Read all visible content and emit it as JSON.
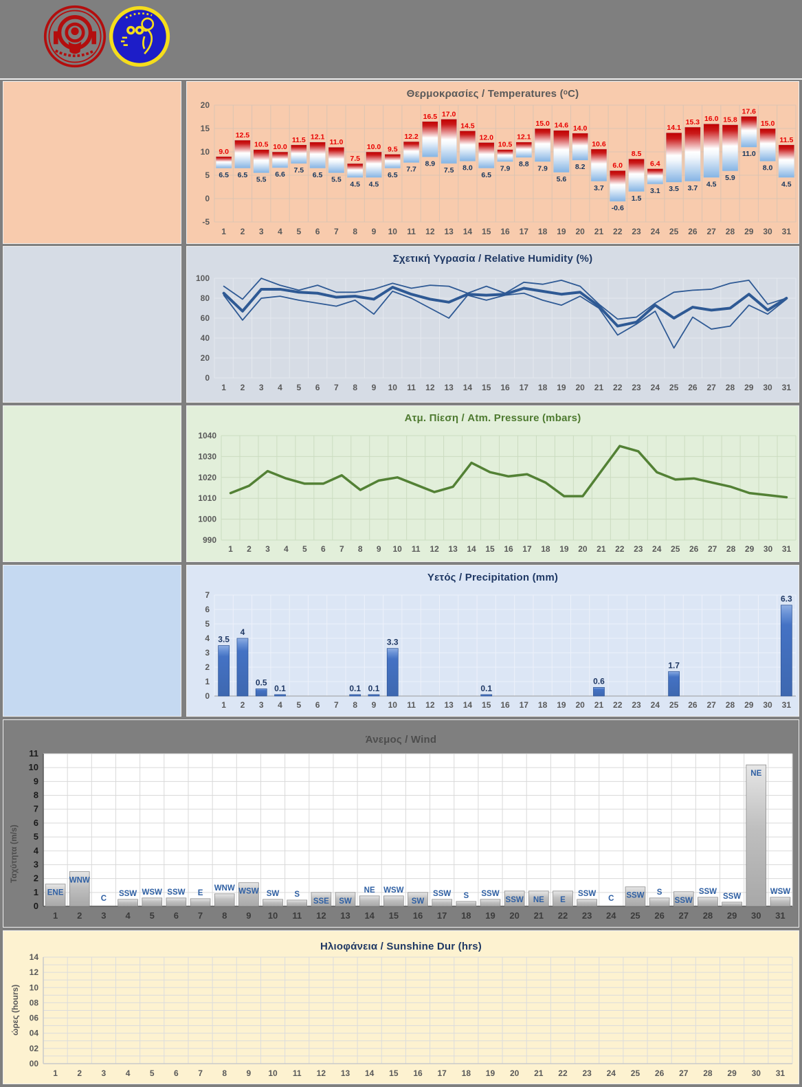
{
  "page": {
    "background": "#7F7F7F"
  },
  "header": {
    "logo_left": "red-university-seal",
    "logo_right": "blue-meteorology-observer-emblem",
    "logo_left_colors": {
      "main": "#B30E0E"
    },
    "logo_right_colors": {
      "disc": "#1D1DC8",
      "ring": "#F5DD1C"
    }
  },
  "chart_data": [
    {
      "id": "temperature",
      "type": "bar",
      "subtype": "floating-range-bar",
      "title": "Θερμοκρασίες / Temperatures (ᵒC)",
      "categories": [
        1,
        2,
        3,
        4,
        5,
        6,
        7,
        8,
        9,
        10,
        11,
        12,
        13,
        14,
        15,
        16,
        17,
        18,
        19,
        20,
        21,
        22,
        23,
        24,
        25,
        26,
        27,
        28,
        29,
        30,
        31
      ],
      "series": [
        {
          "name": "max",
          "values": [
            9.0,
            12.5,
            10.5,
            10.0,
            11.5,
            12.1,
            11.0,
            7.5,
            10.0,
            9.5,
            12.2,
            16.5,
            17.0,
            14.5,
            12.0,
            10.5,
            12.1,
            15.0,
            14.6,
            14.0,
            10.6,
            6.0,
            8.5,
            6.4,
            14.1,
            15.3,
            16.0,
            15.8,
            17.6,
            15.0,
            11.5
          ]
        },
        {
          "name": "min",
          "values": [
            6.5,
            6.5,
            5.5,
            6.6,
            7.5,
            6.5,
            5.5,
            4.5,
            4.5,
            6.5,
            7.7,
            8.9,
            7.5,
            8.0,
            6.5,
            7.9,
            8.8,
            7.9,
            5.6,
            8.2,
            3.7,
            -0.6,
            1.5,
            3.1,
            3.5,
            3.7,
            4.5,
            5.9,
            11.0,
            8.0,
            4.5
          ]
        }
      ],
      "ylim": [
        -5,
        20
      ],
      "yticks": [
        20,
        15,
        10,
        5,
        0,
        -5
      ],
      "grid": "on",
      "colors": {
        "panel_bg": "#F8CBAD",
        "side_bg": "#F8CBAD",
        "title": "#595959",
        "grid": "#DBC4B2",
        "tick": "#595959",
        "max_label": "#E80000",
        "min_label": "#17375E",
        "bar_top": "#C00000",
        "bar_mid": "#FFFFFF",
        "bar_bottom": "#85B4E4"
      }
    },
    {
      "id": "humidity",
      "type": "line",
      "title": "Σχετική Υγρασία / Relative Humidity (%)",
      "categories": [
        1,
        2,
        3,
        4,
        5,
        6,
        7,
        8,
        9,
        10,
        11,
        12,
        13,
        14,
        15,
        16,
        17,
        18,
        19,
        20,
        21,
        22,
        23,
        24,
        25,
        26,
        27,
        28,
        29,
        30,
        31
      ],
      "series": [
        {
          "name": "max",
          "values": [
            92,
            79,
            100,
            93,
            88,
            93,
            86,
            86,
            89,
            95,
            90,
            93,
            92,
            85,
            92,
            85,
            96,
            94,
            98,
            92,
            74,
            59,
            61,
            75,
            86,
            88,
            89,
            95,
            98,
            74,
            80
          ]
        },
        {
          "name": "mean",
          "values": [
            85,
            67,
            89,
            89,
            86,
            85,
            81,
            82,
            79,
            91,
            84,
            79,
            76,
            84,
            83,
            84,
            90,
            87,
            84,
            86,
            72,
            52,
            56,
            73,
            60,
            71,
            68,
            70,
            84,
            68,
            80
          ]
        },
        {
          "name": "min",
          "values": [
            83,
            58,
            80,
            82,
            78,
            75,
            72,
            78,
            64,
            87,
            80,
            70,
            60,
            83,
            78,
            83,
            85,
            78,
            73,
            82,
            70,
            43,
            54,
            67,
            30,
            61,
            49,
            52,
            73,
            64,
            79
          ]
        }
      ],
      "ylim": [
        0,
        100
      ],
      "yticks": [
        100,
        80,
        60,
        40,
        20,
        0
      ],
      "grid": "on",
      "legend": "none",
      "colors": {
        "panel_bg": "#D6DCE5",
        "side_bg": "#D6DCE5",
        "title": "#1F3864",
        "grid": "#E4E8EE",
        "tick": "#595959",
        "line": "#2E5994"
      }
    },
    {
      "id": "pressure",
      "type": "line",
      "title": "Ατμ. Πίεση / Atm. Pressure (mbars)",
      "categories": [
        1,
        2,
        3,
        4,
        5,
        6,
        7,
        8,
        9,
        10,
        11,
        12,
        13,
        14,
        15,
        16,
        17,
        18,
        19,
        20,
        21,
        22,
        23,
        24,
        25,
        26,
        27,
        28,
        29,
        30,
        31
      ],
      "series": [
        {
          "name": "pressure",
          "values": [
            1012.5,
            1016,
            1023,
            1019.5,
            1017,
            1017,
            1021,
            1014,
            1018.5,
            1020,
            1016.5,
            1013,
            1015.5,
            1027,
            1022.5,
            1020.5,
            1021.5,
            1017.5,
            1011,
            1011,
            1023,
            1035,
            1032.5,
            1022.5,
            1019,
            1019.5,
            1017.5,
            1015.5,
            1012.5,
            1011.5,
            1010.5
          ]
        }
      ],
      "ylim": [
        990,
        1040
      ],
      "yticks": [
        1040,
        1030,
        1020,
        1010,
        1000,
        990
      ],
      "grid": "on",
      "colors": {
        "panel_bg": "#E2EFDA",
        "side_bg": "#E2EFDA",
        "title": "#4E7A30",
        "grid": "#CBDCC0",
        "tick": "#595959",
        "line": "#538135"
      }
    },
    {
      "id": "precipitation",
      "type": "bar",
      "title": "Υετός / Precipitation (mm)",
      "categories": [
        1,
        2,
        3,
        4,
        5,
        6,
        7,
        8,
        9,
        10,
        11,
        12,
        13,
        14,
        15,
        16,
        17,
        18,
        19,
        20,
        21,
        22,
        23,
        24,
        25,
        26,
        27,
        28,
        29,
        30,
        31
      ],
      "values": [
        3.5,
        4,
        0.5,
        0.1,
        0,
        0,
        0,
        0.1,
        0.1,
        3.3,
        0,
        0,
        0,
        0,
        0.1,
        0,
        0,
        0,
        0,
        0,
        0.6,
        0,
        0,
        0,
        1.7,
        0,
        0,
        0,
        0,
        0,
        6.3
      ],
      "ylim": [
        0,
        7
      ],
      "yticks": [
        7,
        6,
        5,
        4,
        3,
        2,
        1,
        0
      ],
      "grid": "on",
      "colors": {
        "panel_bg": "#DCE6F5",
        "side_bg": "#C5D9F1",
        "title": "#1F3864",
        "grid": "#EDF1FA",
        "tick": "#595959",
        "bar": "#4472C4",
        "bar_edge": "#2F5597",
        "label": "#1F3864"
      }
    },
    {
      "id": "wind",
      "type": "bar",
      "title": "Άνεμος / Wind",
      "ylabel": "Ταχύτητα (m/s)",
      "categories": [
        1,
        2,
        3,
        4,
        5,
        6,
        7,
        8,
        9,
        10,
        11,
        12,
        13,
        14,
        15,
        16,
        17,
        18,
        19,
        20,
        21,
        22,
        23,
        24,
        25,
        26,
        27,
        28,
        29,
        30,
        31
      ],
      "values": [
        1.6,
        2.5,
        0,
        0.5,
        0.6,
        0.6,
        0.55,
        0.9,
        1.7,
        0.5,
        0.45,
        1.0,
        1.0,
        0.75,
        0.75,
        1.0,
        0.5,
        0.35,
        0.5,
        1.1,
        1.1,
        1.1,
        0.5,
        0,
        1.4,
        0.6,
        1.05,
        0.65,
        0.3,
        10.2,
        0.65
      ],
      "directions": [
        "ENE",
        "WNW",
        "C",
        "SSW",
        "WSW",
        "SSW",
        "E",
        "WNW",
        "WSW",
        "SW",
        "S",
        "SSE",
        "SW",
        "NE",
        "WSW",
        "SW",
        "SSW",
        "S",
        "SSW",
        "SSW",
        "NE",
        "E",
        "SSW",
        "C",
        "SSW",
        "S",
        "SSW",
        "SSW",
        "SSW",
        "NE",
        "WSW"
      ],
      "ylim": [
        0,
        11
      ],
      "yticks": [
        11,
        10,
        9,
        8,
        7,
        6,
        5,
        4,
        3,
        2,
        1,
        0
      ],
      "grid": "on",
      "colors": {
        "panel_bg": "#7F7F7F",
        "plot_bg": "#FFFFFF",
        "title": "#4D4D4D",
        "grid": "#D9D9D9",
        "tick": "#1A1A1A",
        "bar": "#BFBFBF",
        "bar_edge": "#8C8C8C",
        "dir_label": "#2E5FA3",
        "day_label": "#3B3B3B",
        "ylabel_color": "#4D4D4D",
        "axis": "#595959"
      }
    },
    {
      "id": "sunshine",
      "type": "bar",
      "title": "Ηλιοφάνεια / Sunshine Dur (hrs)",
      "ylabel": "ώρες (hours)",
      "categories": [
        1,
        2,
        3,
        4,
        5,
        6,
        7,
        8,
        9,
        10,
        11,
        12,
        13,
        14,
        15,
        16,
        17,
        18,
        19,
        20,
        21,
        22,
        23,
        24,
        25,
        26,
        27,
        28,
        29,
        30,
        31
      ],
      "values": [],
      "ylim": [
        0,
        14
      ],
      "ytick_labels": [
        "14",
        "12",
        "10",
        "08",
        "06",
        "04",
        "02",
        "00"
      ],
      "ytick_values": [
        14,
        12,
        10,
        8,
        6,
        4,
        2,
        0
      ],
      "grid": "on",
      "colors": {
        "panel_bg": "#FDF2D0",
        "title": "#1F3864",
        "grid": "#DCDCDC",
        "tick": "#595959",
        "ylabel_color": "#595959",
        "axis": "#C9C9C9"
      }
    }
  ]
}
